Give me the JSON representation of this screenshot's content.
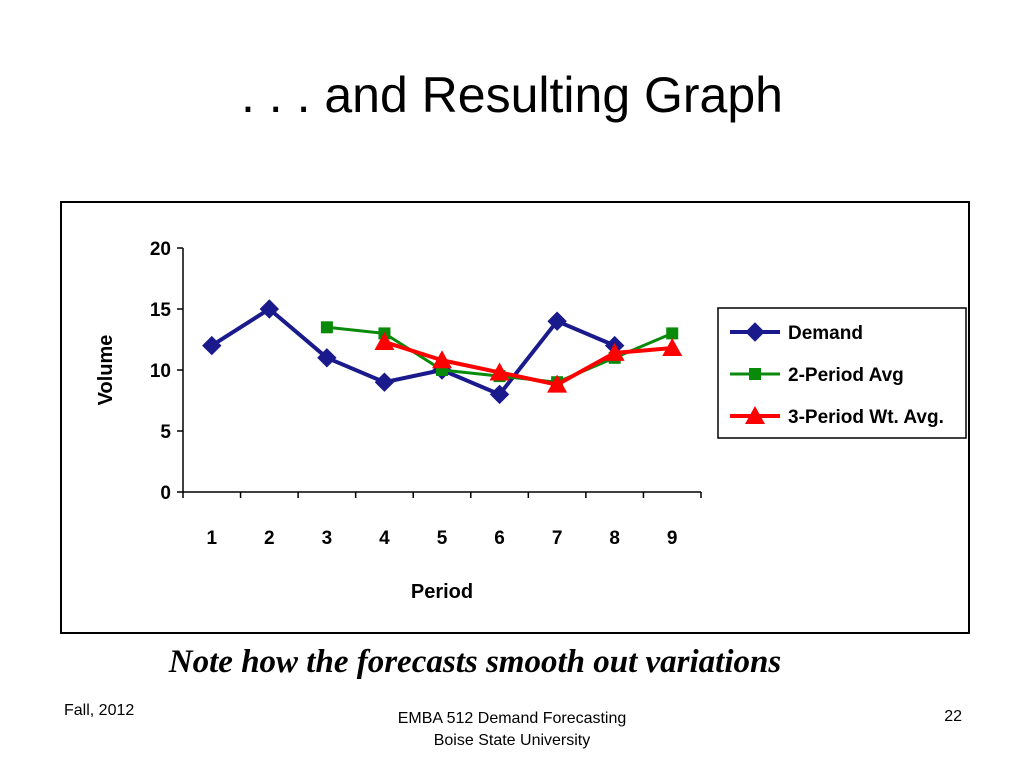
{
  "slide": {
    "title": ". . . and Resulting Graph",
    "caption": "Note how the forecasts smooth out variations",
    "footer_left": "Fall, 2012",
    "footer_center_line1": "EMBA 512 Demand Forecasting",
    "footer_center_line2": "Boise State University",
    "page_number": "22"
  },
  "chart_data": {
    "type": "line",
    "title": "",
    "xlabel": "Period",
    "ylabel": "Volume",
    "categories": [
      "1",
      "2",
      "3",
      "4",
      "5",
      "6",
      "7",
      "8",
      "9"
    ],
    "ylim": [
      0,
      20
    ],
    "yticks": [
      0,
      5,
      10,
      15,
      20
    ],
    "grid": false,
    "legend_position": "right",
    "series": [
      {
        "name": "Demand",
        "color": "#1a1a8c",
        "marker": "diamond",
        "values": [
          12,
          15,
          11,
          9,
          10,
          8,
          14,
          12,
          null
        ]
      },
      {
        "name": "2-Period Avg",
        "color": "#0a8a0a",
        "marker": "square",
        "values": [
          null,
          null,
          13.5,
          13,
          10,
          9.5,
          9,
          11,
          13
        ]
      },
      {
        "name": "3-Period Wt. Avg.",
        "color": "#ff0000",
        "marker": "triangle",
        "values": [
          null,
          null,
          null,
          12.3,
          10.8,
          9.8,
          8.8,
          11.4,
          11.8
        ]
      }
    ]
  }
}
